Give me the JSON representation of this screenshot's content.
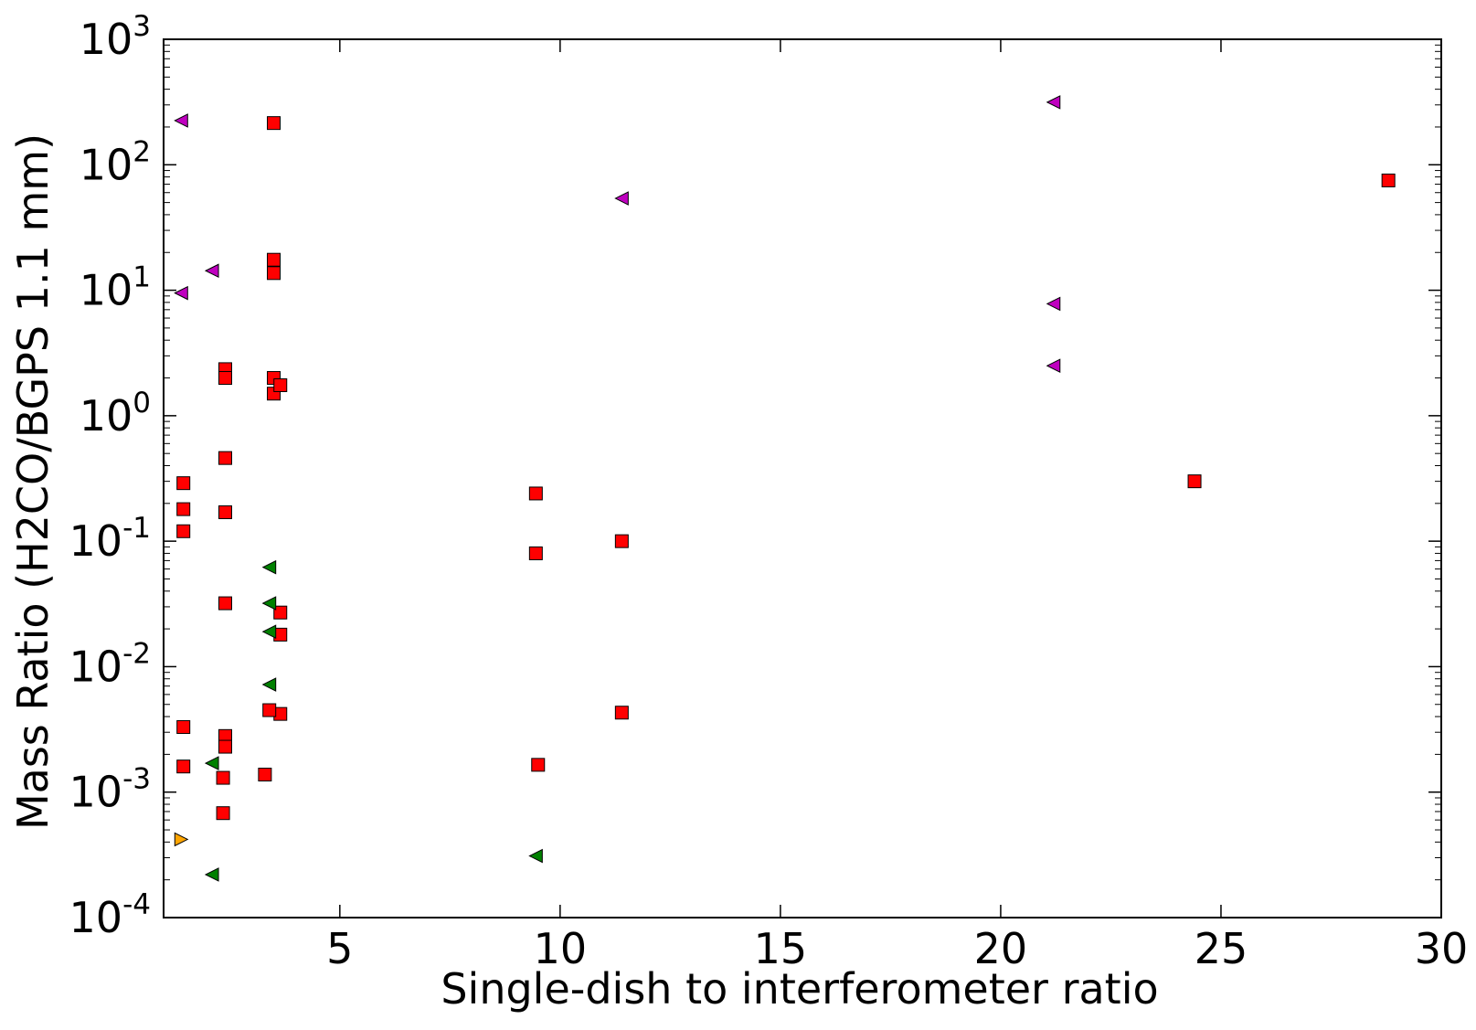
{
  "chart_data": {
    "type": "scatter",
    "xlabel": "Single-dish to interferometer ratio",
    "ylabel": "Mass Ratio (H2CO/BGPS 1.1 mm)",
    "xlim": [
      1,
      30
    ],
    "ylim": [
      0.0001,
      1000
    ],
    "yscale": "log",
    "grid": false,
    "xticks": [
      {
        "value": 5,
        "label": "5"
      },
      {
        "value": 10,
        "label": "10"
      },
      {
        "value": 15,
        "label": "15"
      },
      {
        "value": 20,
        "label": "20"
      },
      {
        "value": 25,
        "label": "25"
      },
      {
        "value": 30,
        "label": "30"
      }
    ],
    "yticks": [
      {
        "value": 0.0001,
        "base": "10",
        "exp": "-4"
      },
      {
        "value": 0.001,
        "base": "10",
        "exp": "-3"
      },
      {
        "value": 0.01,
        "base": "10",
        "exp": "-2"
      },
      {
        "value": 0.1,
        "base": "10",
        "exp": "-1"
      },
      {
        "value": 1,
        "base": "10",
        "exp": "0"
      },
      {
        "value": 10,
        "base": "10",
        "exp": "1"
      },
      {
        "value": 100,
        "base": "10",
        "exp": "2"
      },
      {
        "value": 1000,
        "base": "10",
        "exp": "3"
      }
    ],
    "series": [
      {
        "marker": "square",
        "color": "#ff0000",
        "points": [
          [
            1.45,
            0.29
          ],
          [
            1.45,
            0.18
          ],
          [
            1.45,
            0.12
          ],
          [
            1.45,
            0.0033
          ],
          [
            1.45,
            0.0016
          ],
          [
            2.4,
            2.35
          ],
          [
            2.4,
            2.0
          ],
          [
            2.4,
            0.46
          ],
          [
            2.4,
            0.17
          ],
          [
            2.4,
            0.032
          ],
          [
            2.4,
            0.0028
          ],
          [
            2.4,
            0.0023
          ],
          [
            2.35,
            0.0013
          ],
          [
            2.35,
            0.00068
          ],
          [
            3.5,
            215
          ],
          [
            3.5,
            17.5
          ],
          [
            3.5,
            13.7
          ],
          [
            3.5,
            2.0
          ],
          [
            3.5,
            1.5
          ],
          [
            3.65,
            1.75
          ],
          [
            3.65,
            0.027
          ],
          [
            3.65,
            0.018
          ],
          [
            3.65,
            0.0042
          ],
          [
            3.4,
            0.0045
          ],
          [
            3.3,
            0.00138
          ],
          [
            9.45,
            0.24
          ],
          [
            9.45,
            0.08
          ],
          [
            9.5,
            0.00165
          ],
          [
            11.4,
            0.1
          ],
          [
            11.4,
            0.0043
          ],
          [
            24.4,
            0.3
          ],
          [
            28.8,
            75
          ]
        ]
      },
      {
        "marker": "triangle-left",
        "color": "#bf00bf",
        "points": [
          [
            1.4,
            225
          ],
          [
            1.4,
            9.5
          ],
          [
            2.1,
            14.3
          ],
          [
            11.4,
            54
          ],
          [
            21.2,
            315
          ],
          [
            21.2,
            7.8
          ],
          [
            21.2,
            2.5
          ]
        ]
      },
      {
        "marker": "triangle-left",
        "color": "#008000",
        "points": [
          [
            3.4,
            0.062
          ],
          [
            3.4,
            0.032
          ],
          [
            3.4,
            0.019
          ],
          [
            3.4,
            0.0072
          ],
          [
            2.1,
            0.0017
          ],
          [
            2.1,
            0.00022
          ],
          [
            9.45,
            0.00031
          ]
        ]
      },
      {
        "marker": "triangle-right",
        "color": "#ffa500",
        "points": [
          [
            1.4,
            0.00042
          ]
        ]
      }
    ]
  }
}
